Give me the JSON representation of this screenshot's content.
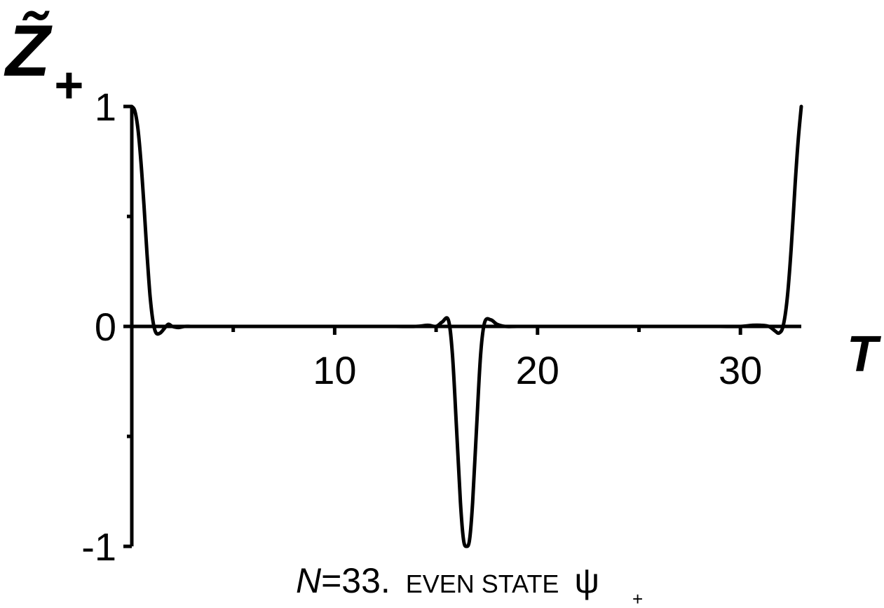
{
  "chart_data": {
    "type": "line",
    "ylabel": "Z̃",
    "ylabel_sub": "+",
    "xlabel": "T",
    "caption": {
      "n_label": "N",
      "n_value": "=33.",
      "state_text": "EVEN STATE",
      "psi": "ψ",
      "psi_sub": "+"
    },
    "xlim": [
      0,
      33
    ],
    "ylim": [
      -1,
      1
    ],
    "x_ticks": [
      {
        "value": 10,
        "label": "10"
      },
      {
        "value": 20,
        "label": "20"
      },
      {
        "value": 30,
        "label": "30"
      }
    ],
    "x_minor_ticks": [
      5,
      15,
      25
    ],
    "y_ticks": [
      {
        "value": -1,
        "label": "-1"
      },
      {
        "value": 0,
        "label": "0"
      },
      {
        "value": 1,
        "label": "1"
      }
    ],
    "y_minor_ticks": [
      -0.5,
      0.5
    ],
    "series": [
      {
        "x": [
          0,
          0.15,
          0.3,
          0.45,
          0.6,
          0.75,
          0.9,
          1.05,
          1.2,
          1.4,
          1.6,
          1.8,
          2.0,
          2.3,
          2.6,
          3.0,
          4,
          5,
          6,
          7,
          8,
          9,
          10,
          11,
          12,
          13,
          14,
          14.6,
          15.0,
          15.3,
          15.6,
          15.8,
          16.0,
          16.2,
          16.35,
          16.5,
          16.65,
          16.8,
          17.0,
          17.2,
          17.4,
          17.7,
          18.0,
          18.4,
          19,
          20,
          21,
          22,
          23,
          24,
          25,
          26,
          27,
          28,
          29,
          30,
          30.6,
          31.0,
          31.4,
          31.7,
          31.9,
          32.1,
          32.3,
          32.5,
          32.7,
          32.85,
          33
        ],
        "y": [
          1.0,
          0.98,
          0.9,
          0.75,
          0.55,
          0.33,
          0.14,
          0.02,
          -0.03,
          -0.03,
          -0.01,
          0.01,
          0.0,
          -0.005,
          0.0,
          0.0,
          0,
          0,
          0,
          0,
          0,
          0,
          0,
          0,
          0,
          0,
          0,
          0.005,
          0.0,
          0.02,
          0.03,
          -0.12,
          -0.45,
          -0.8,
          -0.97,
          -1.0,
          -0.97,
          -0.8,
          -0.45,
          -0.12,
          0.02,
          0.03,
          0.01,
          0.0,
          0,
          0,
          0,
          0,
          0,
          0,
          0,
          0,
          0,
          0,
          0,
          0,
          0.005,
          0.005,
          0.0,
          -0.02,
          -0.03,
          0.0,
          0.12,
          0.35,
          0.65,
          0.85,
          1.0
        ]
      }
    ]
  }
}
